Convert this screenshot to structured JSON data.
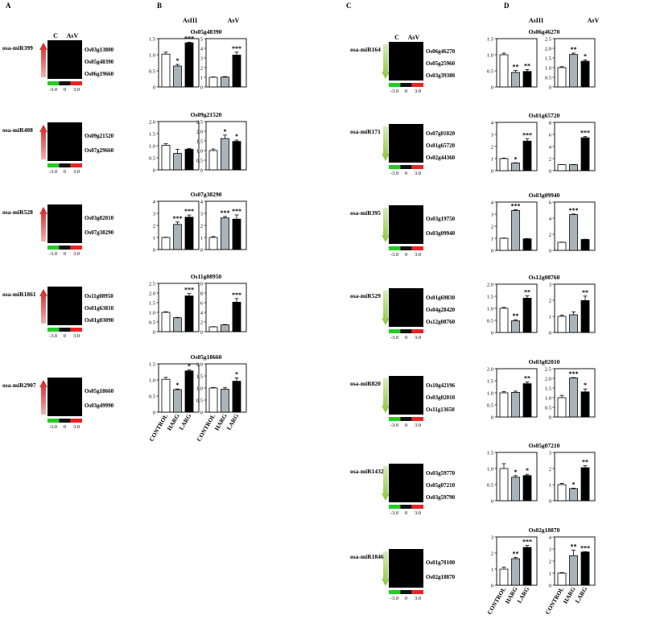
{
  "figure": {
    "panel_letters": [
      "A",
      "B",
      "C",
      "D"
    ],
    "treatment_headers": [
      "AsIII",
      "AsV"
    ],
    "heatmap_col_headers": [
      "C",
      "AsV"
    ],
    "colour_scale_labels": [
      "-3.0",
      "0",
      "3.0"
    ],
    "colour_scale_colors": [
      "#22cc22",
      "#111111",
      "#ee2222"
    ],
    "up_arrow_color": "#d42020",
    "down_arrow_color": "#8cc63f",
    "bar_fill_colors": [
      "#ffffff",
      "#a8b4bc",
      "#000000"
    ]
  },
  "heatmaps": [
    {
      "mirna": "osa-miR399",
      "direction": "up",
      "genes": [
        "Os03g13800",
        "Os05g48390",
        "Os06g19660"
      ]
    },
    {
      "mirna": "osa-miR408",
      "direction": "up",
      "genes": [
        "Os09g21520",
        "Os07g29660"
      ]
    },
    {
      "mirna": "osa-miR528",
      "direction": "up",
      "genes": [
        "Os03g02010",
        "Os07g38290"
      ]
    },
    {
      "mirna": "osa-miR1861",
      "direction": "up",
      "genes": [
        "Os11g08950",
        "Os01g63810",
        "Os01g03090"
      ]
    },
    {
      "mirna": "osa-miR2907",
      "direction": "up",
      "genes": [
        "Os05g18660",
        "Os03g49990"
      ]
    },
    {
      "mirna": "osa-miR164",
      "direction": "down",
      "genes": [
        "Os06g46270",
        "Os05g25960",
        "Os03g39380"
      ]
    },
    {
      "mirna": "osa-miR171",
      "direction": "down",
      "genes": [
        "Os07g01020",
        "Os01g65720",
        "Os02g44360"
      ]
    },
    {
      "mirna": "osa-miR395",
      "direction": "down",
      "genes": [
        "Os03g19750",
        "Os03g09940"
      ]
    },
    {
      "mirna": "osa-miR529",
      "direction": "down",
      "genes": [
        "Os01g69830",
        "Os04g28420",
        "Os12g08760"
      ]
    },
    {
      "mirna": "osa-miR820",
      "direction": "down",
      "genes": [
        "Os10g42196",
        "Os03g02010",
        "Os11g13650"
      ]
    },
    {
      "mirna": "osa-miR1432",
      "direction": "down",
      "genes": [
        "Os03g59770",
        "Os05g07210",
        "Os03g59790"
      ]
    },
    {
      "mirna": "osa-miR1846",
      "direction": "down",
      "genes": [
        "Os01g70100",
        "Os02g18870"
      ]
    }
  ],
  "chart_data": [
    {
      "type": "bar",
      "title": "Os05g48390",
      "panel": "AsIII",
      "categories": [
        "CONTROL",
        "HARG",
        "LARG"
      ],
      "values": [
        1.02,
        0.65,
        1.37
      ],
      "errors": [
        0.06,
        0.05,
        0.02
      ],
      "significance": [
        "",
        "*",
        "***"
      ],
      "ylim": [
        0,
        1.5
      ],
      "yticks": [
        "0",
        "0.5",
        "1.0",
        "1.5"
      ]
    },
    {
      "type": "bar",
      "title": "Os05g48390",
      "panel": "AsV",
      "categories": [
        "CONTROL",
        "HARG",
        "LARG"
      ],
      "values": [
        1.0,
        1.02,
        3.3
      ],
      "errors": [
        0.03,
        0.05,
        0.3
      ],
      "significance": [
        "",
        "",
        "***"
      ],
      "ylim": [
        0,
        5
      ],
      "yticks": [
        "0",
        "1",
        "2",
        "3",
        "4",
        "5"
      ]
    },
    {
      "type": "bar",
      "title": "Os09g21520",
      "panel": "AsIII",
      "categories": [
        "CONTROL",
        "HARG",
        "LARG"
      ],
      "values": [
        1.02,
        0.68,
        0.85
      ],
      "errors": [
        0.06,
        0.17,
        0.04
      ],
      "significance": [
        "",
        "",
        ""
      ],
      "ylim": [
        0,
        2.0
      ],
      "yticks": [
        "0",
        "0.5",
        "1.0",
        "1.5",
        "2.0"
      ]
    },
    {
      "type": "bar",
      "title": "Os09g21520",
      "panel": "AsV",
      "categories": [
        "CONTROL",
        "HARG",
        "LARG"
      ],
      "values": [
        1.0,
        1.62,
        1.47
      ],
      "errors": [
        0.08,
        0.18,
        0.07
      ],
      "significance": [
        "",
        "*",
        "*"
      ],
      "ylim": [
        0,
        2.5
      ],
      "yticks": [
        "0",
        "0.5",
        "1.0",
        "1.5",
        "2.0",
        "2.5"
      ]
    },
    {
      "type": "bar",
      "title": "Os07g38290",
      "panel": "AsIII",
      "categories": [
        "CONTROL",
        "HARG",
        "LARG"
      ],
      "values": [
        1.0,
        2.08,
        2.68
      ],
      "errors": [
        0.02,
        0.2,
        0.18
      ],
      "significance": [
        "",
        "***",
        "***"
      ],
      "ylim": [
        0,
        4
      ],
      "yticks": [
        "0",
        "1",
        "2",
        "3",
        "4"
      ]
    },
    {
      "type": "bar",
      "title": "Os07g38290",
      "panel": "AsV",
      "categories": [
        "CONTROL",
        "HARG",
        "LARG"
      ],
      "values": [
        1.0,
        2.62,
        2.52
      ],
      "errors": [
        0.08,
        0.12,
        0.35
      ],
      "significance": [
        "",
        "***",
        "***"
      ],
      "ylim": [
        0,
        4
      ],
      "yticks": [
        "0",
        "1",
        "2",
        "3",
        "4"
      ]
    },
    {
      "type": "bar",
      "title": "Os11g08950",
      "panel": "AsIII",
      "categories": [
        "CONTROL",
        "HARG",
        "LARG"
      ],
      "values": [
        1.0,
        0.72,
        1.85
      ],
      "errors": [
        0.03,
        0.02,
        0.12
      ],
      "significance": [
        "",
        "",
        "***"
      ],
      "ylim": [
        0,
        2.5
      ],
      "yticks": [
        "0",
        "0.5",
        "1.0",
        "1.5",
        "2.0",
        "2.5"
      ]
    },
    {
      "type": "bar",
      "title": "Os11g08950",
      "panel": "AsV",
      "categories": [
        "CONTROL",
        "HARG",
        "LARG"
      ],
      "values": [
        1.0,
        1.4,
        6.1
      ],
      "errors": [
        0.04,
        0.08,
        0.75
      ],
      "significance": [
        "",
        "",
        "***"
      ],
      "ylim": [
        0,
        10
      ],
      "yticks": [
        "0",
        "2",
        "4",
        "6",
        "8",
        "10"
      ]
    },
    {
      "type": "bar",
      "title": "Os05g18660",
      "panel": "AsIII",
      "categories": [
        "CONTROL",
        "HARG",
        "LARG"
      ],
      "values": [
        1.02,
        0.7,
        1.28
      ],
      "errors": [
        0.06,
        0.02,
        0.03
      ],
      "significance": [
        "",
        "*",
        "*"
      ],
      "ylim": [
        0,
        1.5
      ],
      "yticks": [
        "0",
        "0.5",
        "1.0",
        "1.5"
      ]
    },
    {
      "type": "bar",
      "title": "Os05g18660",
      "panel": "AsV",
      "categories": [
        "CONTROL",
        "HARG",
        "LARG"
      ],
      "values": [
        1.0,
        0.95,
        1.28
      ],
      "errors": [
        0.02,
        0.06,
        0.14
      ],
      "significance": [
        "",
        "",
        "*"
      ],
      "ylim": [
        0,
        2.0
      ],
      "yticks": [
        "0",
        "0.5",
        "1.0",
        "1.5",
        "2.0"
      ]
    },
    {
      "type": "bar",
      "title": "Os06g46270",
      "panel": "AsIII",
      "categories": [
        "CONTROL",
        "HARG",
        "LARG"
      ],
      "values": [
        1.0,
        0.45,
        0.48
      ],
      "errors": [
        0.05,
        0.06,
        0.06
      ],
      "significance": [
        "",
        "**",
        "**"
      ],
      "ylim": [
        0,
        1.5
      ],
      "yticks": [
        "0",
        "0.5",
        "1.0",
        "1.5"
      ]
    },
    {
      "type": "bar",
      "title": "Os06g46270",
      "panel": "AsV",
      "categories": [
        "CONTROL",
        "HARG",
        "LARG"
      ],
      "values": [
        1.0,
        1.68,
        1.33
      ],
      "errors": [
        0.05,
        0.07,
        0.07
      ],
      "significance": [
        "",
        "**",
        "*"
      ],
      "ylim": [
        0,
        2.5
      ],
      "yticks": [
        "0",
        "0.5",
        "1.0",
        "1.5",
        "2.0",
        "2.5"
      ]
    },
    {
      "type": "bar",
      "title": "Os01g65720",
      "panel": "AsIII",
      "categories": [
        "CONTROL",
        "HARG",
        "LARG"
      ],
      "values": [
        1.0,
        0.63,
        2.45
      ],
      "errors": [
        0.04,
        0.02,
        0.2
      ],
      "significance": [
        "",
        "*",
        "***"
      ],
      "ylim": [
        0,
        4
      ],
      "yticks": [
        "0",
        "1",
        "2",
        "3",
        "4"
      ]
    },
    {
      "type": "bar",
      "title": "Os01g65720",
      "panel": "AsV",
      "categories": [
        "CONTROL",
        "HARG",
        "LARG"
      ],
      "values": [
        1.0,
        1.0,
        5.45
      ],
      "errors": [
        0.02,
        0.02,
        0.2
      ],
      "significance": [
        "",
        "",
        "***"
      ],
      "ylim": [
        0,
        8
      ],
      "yticks": [
        "0",
        "2",
        "4",
        "6",
        "8"
      ]
    },
    {
      "type": "bar",
      "title": "Os03g09940",
      "panel": "AsIII",
      "categories": [
        "CONTROL",
        "HARG",
        "LARG"
      ],
      "values": [
        1.0,
        3.3,
        0.95
      ],
      "errors": [
        0.02,
        0.06,
        0.03
      ],
      "significance": [
        "",
        "***",
        ""
      ],
      "ylim": [
        0,
        4
      ],
      "yticks": [
        "0",
        "1",
        "2",
        "3",
        "4"
      ]
    },
    {
      "type": "bar",
      "title": "Os03g09940",
      "panel": "AsV",
      "categories": [
        "CONTROL",
        "HARG",
        "LARG"
      ],
      "values": [
        1.0,
        4.45,
        1.35
      ],
      "errors": [
        0.02,
        0.06,
        0.03
      ],
      "significance": [
        "",
        "***",
        ""
      ],
      "ylim": [
        0,
        6
      ],
      "yticks": [
        "0",
        "2",
        "4",
        "6"
      ]
    },
    {
      "type": "bar",
      "title": "Os12g08760",
      "panel": "AsIII",
      "categories": [
        "CONTROL",
        "HARG",
        "LARG"
      ],
      "values": [
        1.0,
        0.48,
        1.42
      ],
      "errors": [
        0.04,
        0.05,
        0.1
      ],
      "significance": [
        "",
        "**",
        "**"
      ],
      "ylim": [
        0,
        2.0
      ],
      "yticks": [
        "0",
        "0.5",
        "1.0",
        "1.5",
        "2.0"
      ]
    },
    {
      "type": "bar",
      "title": "Os12g08760",
      "panel": "AsV",
      "categories": [
        "CONTROL",
        "HARG",
        "LARG"
      ],
      "values": [
        1.0,
        1.1,
        1.98
      ],
      "errors": [
        0.08,
        0.18,
        0.28
      ],
      "significance": [
        "",
        "",
        "**"
      ],
      "ylim": [
        0,
        3
      ],
      "yticks": [
        "0",
        "1",
        "2",
        "3"
      ]
    },
    {
      "type": "bar",
      "title": "Os03g02010",
      "panel": "AsIII",
      "categories": [
        "CONTROL",
        "HARG",
        "LARG"
      ],
      "values": [
        1.0,
        1.02,
        1.38
      ],
      "errors": [
        0.05,
        0.05,
        0.07
      ],
      "significance": [
        "",
        "",
        "**"
      ],
      "ylim": [
        0,
        2.0
      ],
      "yticks": [
        "0",
        "0.5",
        "1.0",
        "1.5",
        "2.0"
      ]
    },
    {
      "type": "bar",
      "title": "Os03g02010",
      "panel": "AsV",
      "categories": [
        "CONTROL",
        "HARG",
        "LARG"
      ],
      "values": [
        1.0,
        2.02,
        1.3
      ],
      "errors": [
        0.12,
        0.02,
        0.15
      ],
      "significance": [
        "",
        "***",
        "*"
      ],
      "ylim": [
        0,
        2.5
      ],
      "yticks": [
        "0",
        "0.5",
        "1.0",
        "1.5",
        "2.0",
        "2.5"
      ]
    },
    {
      "type": "bar",
      "title": "Os05g07210",
      "panel": "AsIII",
      "categories": [
        "CONTROL",
        "HARG",
        "LARG"
      ],
      "values": [
        1.0,
        0.73,
        0.78
      ],
      "errors": [
        0.15,
        0.05,
        0.04
      ],
      "significance": [
        "",
        "*",
        "*"
      ],
      "ylim": [
        0,
        1.5
      ],
      "yticks": [
        "0",
        "0.5",
        "1.0",
        "1.5"
      ]
    },
    {
      "type": "bar",
      "title": "Os05g07210",
      "panel": "AsV",
      "categories": [
        "CONTROL",
        "HARG",
        "LARG"
      ],
      "values": [
        1.0,
        0.75,
        2.05
      ],
      "errors": [
        0.08,
        0.03,
        0.12
      ],
      "significance": [
        "",
        "*",
        "**"
      ],
      "ylim": [
        0,
        3
      ],
      "yticks": [
        "0",
        "1",
        "2",
        "3"
      ]
    },
    {
      "type": "bar",
      "title": "Os02g18870",
      "panel": "AsIII",
      "categories": [
        "CONTROL",
        "HARG",
        "LARG"
      ],
      "values": [
        1.0,
        1.65,
        2.35
      ],
      "errors": [
        0.12,
        0.08,
        0.12
      ],
      "significance": [
        "",
        "**",
        "***"
      ],
      "ylim": [
        0,
        3
      ],
      "yticks": [
        "0",
        "1",
        "2",
        "3"
      ]
    },
    {
      "type": "bar",
      "title": "Os02g18870",
      "panel": "AsV",
      "categories": [
        "CONTROL",
        "HARG",
        "LARG"
      ],
      "values": [
        1.0,
        2.45,
        2.75
      ],
      "errors": [
        0.05,
        0.45,
        0.03
      ],
      "significance": [
        "",
        "**",
        "***"
      ],
      "ylim": [
        0,
        4
      ],
      "yticks": [
        "0",
        "1",
        "2",
        "3",
        "4"
      ]
    }
  ]
}
